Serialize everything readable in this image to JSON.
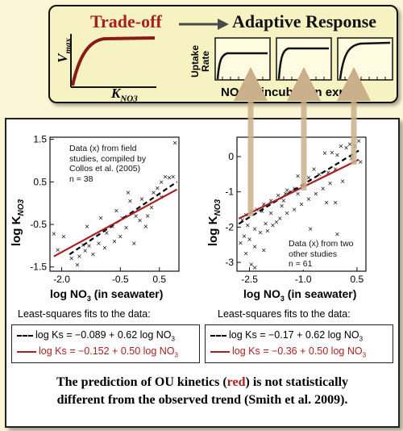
{
  "top": {
    "tradeoff_label": "Trade-off",
    "adaptive_label": "Adaptive Response",
    "vmax_label": "V",
    "vmax_sub": "max",
    "kno3_label": "K",
    "kno3_sub": "NO3",
    "uptake_label_line1": "Uptake",
    "uptake_label_line2": "Rate",
    "incubation_label": "NO",
    "incubation_sub": "3",
    "incubation_rest": " in incubation expts."
  },
  "left_plot": {
    "annotation_lines": [
      "Data (x) from field",
      "studies, compiled by",
      "Collos et al. (2005)",
      "n = 38"
    ],
    "ylabel_main": "log K",
    "ylabel_sub": "NO3",
    "xlabel_main": "log NO",
    "xlabel_sub": "3",
    "xlabel_rest": " (in seawater)",
    "yticks": [
      "1.5",
      "0.5",
      "-0.5",
      "-1.5"
    ],
    "xticks": [
      "-2.0",
      "-0.5",
      "0.5"
    ]
  },
  "right_plot": {
    "annotation_lines": [
      "Data (x) from two",
      "other studies",
      "n = 61"
    ],
    "ylabel_main": "log K",
    "ylabel_sub": "NO3",
    "xlabel_main": "log NO",
    "xlabel_sub": "3",
    "xlabel_rest": " (in seawater)",
    "yticks": [
      "0",
      "-1",
      "-2",
      "-3"
    ],
    "xticks": [
      "-2.5",
      "-1.0",
      "0.5"
    ]
  },
  "fits_heading": "Least-squares fits to the data:",
  "left_fits": {
    "dashed": "log Ks = −0.089 + 0.62 log NO",
    "dashed_sub": "3",
    "solid": "log Ks = −0.152 + 0.50 log NO",
    "solid_sub": "3"
  },
  "right_fits": {
    "dashed": "log Ks = −0.17 + 0.62 log NO",
    "dashed_sub": "3",
    "solid": "log Ks = −0.36 + 0.50 log NO",
    "solid_sub": "3"
  },
  "caption": {
    "part1": "The prediction of OU kinetics (",
    "red_word": "red",
    "part2": ") is not statistically",
    "line2": "different from the observed trend (Smith et al. 2009)."
  },
  "colors": {
    "accent_red": "#a82020",
    "arrow_tan": "#c9b08a",
    "panel_yellow": "#f7f2c2",
    "background": "#fbf6d6"
  },
  "chart_data": [
    {
      "type": "scatter",
      "title": "",
      "xlabel": "log NO3 (in seawater)",
      "ylabel": "log K_NO3",
      "xlim": [
        -2.3,
        1.0
      ],
      "ylim": [
        -1.6,
        1.55
      ],
      "xticks": [
        -2.0,
        -0.5,
        0.5
      ],
      "yticks": [
        1.5,
        0.5,
        -0.5,
        -1.5
      ],
      "points": [
        [
          0.9,
          1.42
        ],
        [
          -2.2,
          -0.72
        ],
        [
          -1.95,
          -0.78
        ],
        [
          -2.1,
          -1.1
        ],
        [
          -1.75,
          -1.3
        ],
        [
          -1.6,
          -1.45
        ],
        [
          -1.55,
          -1.25
        ],
        [
          -1.4,
          -1.12
        ],
        [
          -1.45,
          -0.98
        ],
        [
          -1.3,
          -1.0
        ],
        [
          -1.2,
          -1.2
        ],
        [
          -1.05,
          -0.95
        ],
        [
          -1.35,
          -0.55
        ],
        [
          -1.0,
          -0.35
        ],
        [
          -0.85,
          -0.7
        ],
        [
          -0.7,
          -0.55
        ],
        [
          -0.6,
          -0.18
        ],
        [
          -0.45,
          -0.35
        ],
        [
          -0.5,
          -0.78
        ],
        [
          -0.35,
          -0.58
        ],
        [
          -0.3,
          0.25
        ],
        [
          -0.25,
          0.05
        ],
        [
          -0.1,
          -0.3
        ],
        [
          0.0,
          -0.4
        ],
        [
          0.15,
          -0.55
        ],
        [
          0.2,
          -0.3
        ],
        [
          0.3,
          -0.1
        ],
        [
          0.35,
          0.25
        ],
        [
          0.45,
          0.35
        ],
        [
          0.55,
          0.5
        ],
        [
          0.65,
          0.62
        ],
        [
          0.75,
          0.6
        ],
        [
          0.85,
          0.62
        ],
        [
          0.55,
          0.15
        ],
        [
          -0.15,
          -0.95
        ],
        [
          -0.65,
          -0.9
        ],
        [
          -0.9,
          -1.05
        ],
        [
          0.05,
          0.1
        ]
      ],
      "series": [
        {
          "style": "dashed",
          "intercept": -0.089,
          "slope": 0.62,
          "x": [
            -1.8,
            0.95
          ]
        },
        {
          "style": "solid",
          "intercept": -0.152,
          "slope": 0.5,
          "x": [
            -2.2,
            0.95
          ]
        }
      ]
    },
    {
      "type": "scatter",
      "title": "",
      "xlabel": "log NO3 (in seawater)",
      "ylabel": "log K_NO3",
      "xlim": [
        -2.85,
        0.75
      ],
      "ylim": [
        -3.25,
        0.55
      ],
      "xticks": [
        -2.5,
        -1.0,
        0.5
      ],
      "yticks": [
        0,
        -1,
        -2,
        -3
      ],
      "points": [
        [
          0.55,
          0.45
        ],
        [
          0.45,
          0.3
        ],
        [
          0.3,
          0.35
        ],
        [
          0.2,
          0.25
        ],
        [
          0.05,
          0.3
        ],
        [
          -0.05,
          0.05
        ],
        [
          -0.2,
          0.12
        ],
        [
          -0.4,
          0.1
        ],
        [
          0.35,
          -0.05
        ],
        [
          0.6,
          -0.15
        ],
        [
          -0.1,
          -0.35
        ],
        [
          -0.3,
          -0.45
        ],
        [
          -0.55,
          -0.5
        ],
        [
          -0.7,
          -0.35
        ],
        [
          -0.85,
          -0.6
        ],
        [
          -1.0,
          -0.8
        ],
        [
          -1.15,
          -0.55
        ],
        [
          -1.25,
          -0.9
        ],
        [
          -1.35,
          -1.0
        ],
        [
          -1.5,
          -1.05
        ],
        [
          -1.7,
          -1.1
        ],
        [
          -1.9,
          -1.25
        ],
        [
          -2.1,
          -1.35
        ],
        [
          -2.3,
          -1.5
        ],
        [
          -2.45,
          -1.55
        ],
        [
          -2.6,
          -1.65
        ],
        [
          -2.7,
          -1.8
        ],
        [
          -2.55,
          -1.95
        ],
        [
          -2.35,
          -2.05
        ],
        [
          -2.2,
          -2.15
        ],
        [
          -2.05,
          -1.9
        ],
        [
          -1.85,
          -1.95
        ],
        [
          -1.65,
          -1.75
        ],
        [
          -1.45,
          -1.6
        ],
        [
          -1.25,
          -1.5
        ],
        [
          -1.05,
          -1.35
        ],
        [
          -0.85,
          -1.2
        ],
        [
          -0.65,
          -1.05
        ],
        [
          -0.45,
          -0.9
        ],
        [
          -1.6,
          -1.4
        ],
        [
          -2.75,
          -2.45
        ],
        [
          -2.5,
          -2.35
        ],
        [
          -2.35,
          -2.55
        ],
        [
          -2.1,
          -2.65
        ],
        [
          -2.45,
          -3.05
        ],
        [
          -2.35,
          -3.15
        ],
        [
          -0.05,
          -2.2
        ],
        [
          -0.1,
          -1.3
        ],
        [
          -0.8,
          -2.05
        ],
        [
          0.1,
          -0.7
        ],
        [
          -1.45,
          -0.95
        ],
        [
          -1.9,
          -1.6
        ],
        [
          -2.15,
          -1.55
        ],
        [
          -2.65,
          -2.25
        ],
        [
          -0.35,
          -1.3
        ],
        [
          -1.15,
          -1.05
        ],
        [
          -1.75,
          -1.85
        ],
        [
          -2.0,
          -2.1
        ],
        [
          -0.25,
          -0.75
        ],
        [
          -2.6,
          -2.75
        ],
        [
          -1.55,
          -1.25
        ]
      ],
      "series": [
        {
          "style": "dashed",
          "intercept": -0.17,
          "slope": 0.62,
          "x": [
            -2.8,
            0.55
          ]
        },
        {
          "style": "solid",
          "intercept": -0.36,
          "slope": 0.5,
          "x": [
            -2.8,
            0.55
          ]
        }
      ]
    }
  ]
}
